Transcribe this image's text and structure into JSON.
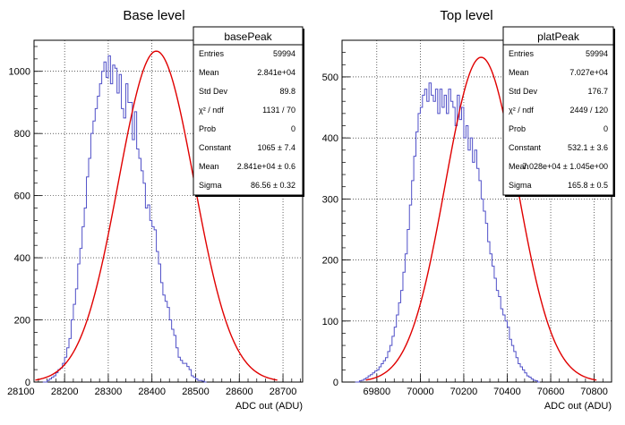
{
  "chart_data": [
    {
      "type": "histogram",
      "title": "Base level",
      "xlabel": "ADC out (ADU)",
      "ylabel": "",
      "xlim": [
        28130,
        28745
      ],
      "ylim": [
        0,
        1100
      ],
      "xticks": [
        28100,
        28200,
        28300,
        28400,
        28500,
        28600,
        28700
      ],
      "yticks": [
        0,
        200,
        400,
        600,
        800,
        1000
      ],
      "grid": true,
      "colors": {
        "histogram": "#5050c8",
        "fit": "#e00000"
      },
      "stats_box": {
        "title": "basePeak",
        "rows": [
          {
            "label": "Entries",
            "value": "59994"
          },
          {
            "label": "Mean",
            "value": "2.841e+04"
          },
          {
            "label": "Std Dev",
            "value": "89.8"
          },
          {
            "label": "χ² / ndf",
            "value": "1131 / 70"
          },
          {
            "label": "Prob",
            "value": "0"
          },
          {
            "label": "Constant",
            "value": "1065 ± 7.4"
          },
          {
            "label": "Mean",
            "value": "2.841e+04 ± 0.6"
          },
          {
            "label": "Sigma",
            "value": "86.56 ± 0.32"
          }
        ]
      },
      "fit": {
        "type": "gaus",
        "constant": 1065,
        "mean": 28410,
        "sigma": 86.56
      },
      "histogram": {
        "bin_start": 28150,
        "bin_width": 5,
        "values": [
          0,
          0,
          5,
          10,
          15,
          20,
          30,
          40,
          45,
          60,
          80,
          110,
          140,
          200,
          250,
          300,
          380,
          430,
          500,
          560,
          660,
          720,
          800,
          840,
          880,
          920,
          960,
          1000,
          1030,
          980,
          1050,
          960,
          1020,
          1010,
          930,
          990,
          880,
          850,
          960,
          900,
          900,
          780,
          870,
          750,
          720,
          680,
          640,
          560,
          570,
          520,
          500,
          490,
          420,
          380,
          320,
          280,
          260,
          240,
          200,
          170,
          150,
          110,
          80,
          70,
          60,
          60,
          50,
          40,
          20,
          15,
          10,
          5,
          5,
          3,
          0
        ]
      }
    },
    {
      "type": "histogram",
      "title": "Top level",
      "xlabel": "ADC out (ADU)",
      "ylabel": "",
      "xlim": [
        69640,
        70880
      ],
      "ylim": [
        0,
        560
      ],
      "xticks": [
        69800,
        70000,
        70200,
        70400,
        70600,
        70800
      ],
      "yticks": [
        0,
        100,
        200,
        300,
        400,
        500
      ],
      "grid": true,
      "colors": {
        "histogram": "#5050c8",
        "fit": "#e00000"
      },
      "stats_box": {
        "title": "platPeak",
        "rows": [
          {
            "label": "Entries",
            "value": "59994"
          },
          {
            "label": "Mean",
            "value": "7.027e+04"
          },
          {
            "label": "Std Dev",
            "value": "176.7"
          },
          {
            "label": "χ² / ndf",
            "value": "2449 / 120"
          },
          {
            "label": "Prob",
            "value": "0"
          },
          {
            "label": "Constant",
            "value": "532.1 ± 3.6"
          },
          {
            "label": "Mean",
            "value": "7.028e+04 ± 1.045e+00"
          },
          {
            "label": "Sigma",
            "value": "165.8 ± 0.5"
          }
        ]
      },
      "fit": {
        "type": "gaus",
        "constant": 532.1,
        "mean": 70280,
        "sigma": 165.8
      },
      "histogram": {
        "bin_start": 69700,
        "bin_width": 10,
        "values": [
          0,
          0,
          2,
          3,
          5,
          7,
          10,
          12,
          15,
          18,
          20,
          25,
          30,
          35,
          40,
          50,
          60,
          75,
          90,
          110,
          130,
          150,
          180,
          210,
          250,
          290,
          330,
          370,
          410,
          440,
          450,
          470,
          480,
          460,
          490,
          470,
          460,
          480,
          440,
          480,
          450,
          470,
          440,
          480,
          460,
          450,
          420,
          470,
          430,
          450,
          400,
          420,
          380,
          400,
          360,
          380,
          350,
          330,
          300,
          280,
          260,
          230,
          210,
          190,
          170,
          150,
          140,
          120,
          110,
          100,
          90,
          70,
          60,
          50,
          40,
          30,
          25,
          20,
          15,
          10,
          8,
          5,
          3,
          2,
          0
        ]
      }
    }
  ]
}
